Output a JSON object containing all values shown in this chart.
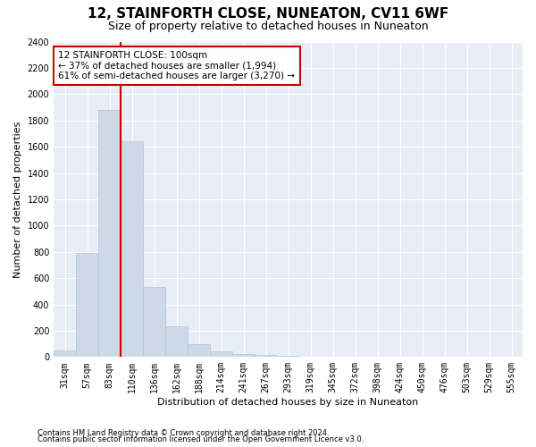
{
  "title": "12, STAINFORTH CLOSE, NUNEATON, CV11 6WF",
  "subtitle": "Size of property relative to detached houses in Nuneaton",
  "xlabel": "Distribution of detached houses by size in Nuneaton",
  "ylabel": "Number of detached properties",
  "categories": [
    "31sqm",
    "57sqm",
    "83sqm",
    "110sqm",
    "136sqm",
    "162sqm",
    "188sqm",
    "214sqm",
    "241sqm",
    "267sqm",
    "293sqm",
    "319sqm",
    "345sqm",
    "372sqm",
    "398sqm",
    "424sqm",
    "450sqm",
    "476sqm",
    "503sqm",
    "529sqm",
    "555sqm"
  ],
  "values": [
    50,
    790,
    1880,
    1640,
    530,
    235,
    100,
    45,
    22,
    14,
    8,
    4,
    2,
    1,
    1,
    1,
    0,
    0,
    0,
    0,
    0
  ],
  "bar_color": "#cdd9e8",
  "bar_edge_color": "#b0c4d8",
  "vline_color": "#cc0000",
  "vline_x_idx": 2.5,
  "annotation_text": "12 STAINFORTH CLOSE: 100sqm\n← 37% of detached houses are smaller (1,994)\n61% of semi-detached houses are larger (3,270) →",
  "annotation_box_edgecolor": "#cc0000",
  "ylim": [
    0,
    2400
  ],
  "yticks": [
    0,
    200,
    400,
    600,
    800,
    1000,
    1200,
    1400,
    1600,
    1800,
    2000,
    2200,
    2400
  ],
  "footer1": "Contains HM Land Registry data © Crown copyright and database right 2024.",
  "footer2": "Contains public sector information licensed under the Open Government Licence v3.0.",
  "plot_bg_color": "#e8eef5",
  "title_fontsize": 11,
  "subtitle_fontsize": 9,
  "tick_fontsize": 7,
  "ylabel_fontsize": 8,
  "xlabel_fontsize": 8,
  "annotation_fontsize": 7.5,
  "footer_fontsize": 6
}
